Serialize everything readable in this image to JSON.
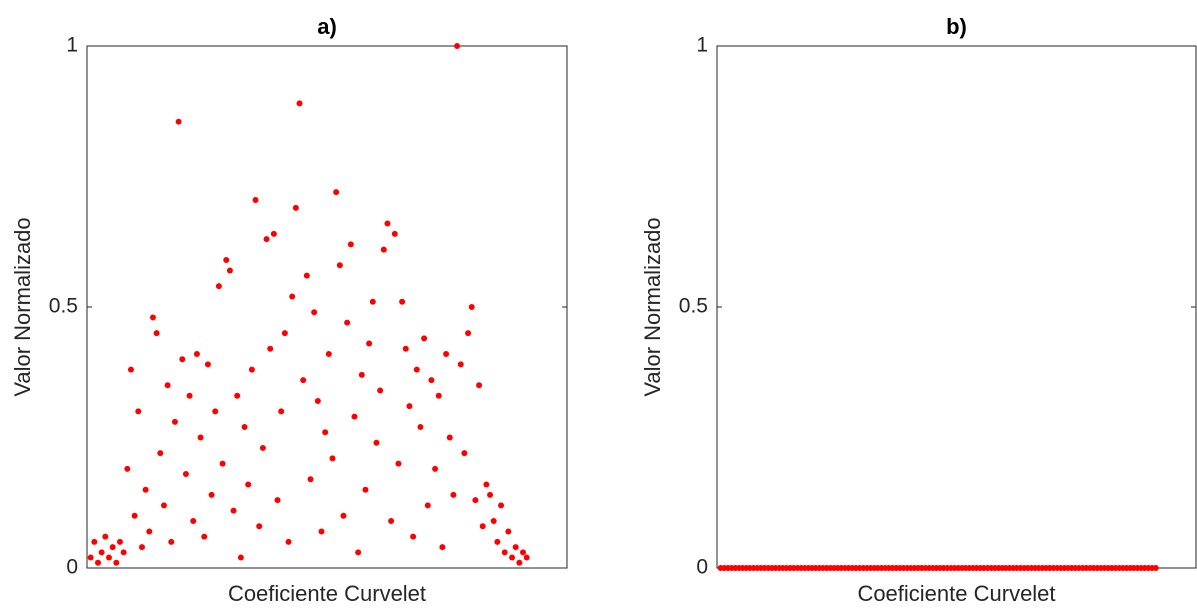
{
  "chart_data": [
    {
      "type": "scatter",
      "title": "a)",
      "x_label": "Coeficiente Curvelet",
      "y_label": "Valor Normalizado",
      "color": "#ff0000",
      "x": [
        1,
        2,
        3,
        4,
        5,
        6,
        7,
        8,
        9,
        10,
        11,
        12,
        13,
        14,
        15,
        16,
        17,
        18,
        19,
        20,
        21,
        22,
        23,
        24,
        25,
        26,
        27,
        28,
        29,
        30,
        31,
        32,
        33,
        34,
        35,
        36,
        37,
        38,
        39,
        40,
        41,
        42,
        43,
        44,
        45,
        46,
        47,
        48,
        49,
        50,
        51,
        52,
        53,
        54,
        55,
        56,
        57,
        58,
        59,
        60,
        61,
        62,
        63,
        64,
        65,
        66,
        67,
        68,
        69,
        70,
        71,
        72,
        73,
        74,
        75,
        76,
        77,
        78,
        79,
        80,
        81,
        82,
        83,
        84,
        85,
        86,
        87,
        88,
        89,
        90,
        91,
        92,
        93,
        94,
        95,
        96,
        97,
        98,
        99,
        100,
        101,
        102,
        103,
        104,
        105,
        106,
        107,
        108,
        109,
        110,
        111,
        112,
        113,
        114,
        115,
        116,
        117,
        118,
        119,
        120
      ],
      "values": [
        0.02,
        0.05,
        0.01,
        0.03,
        0.06,
        0.02,
        0.04,
        0.01,
        0.05,
        0.03,
        0.19,
        0.38,
        0.1,
        0.3,
        0.04,
        0.15,
        0.07,
        0.48,
        0.45,
        0.22,
        0.12,
        0.35,
        0.05,
        0.28,
        0.855,
        0.4,
        0.18,
        0.33,
        0.09,
        0.41,
        0.25,
        0.06,
        0.39,
        0.14,
        0.3,
        0.54,
        0.2,
        0.59,
        0.57,
        0.11,
        0.33,
        0.02,
        0.27,
        0.16,
        0.38,
        0.705,
        0.08,
        0.23,
        0.63,
        0.42,
        0.64,
        0.13,
        0.3,
        0.45,
        0.05,
        0.52,
        0.69,
        0.89,
        0.36,
        0.56,
        0.17,
        0.49,
        0.32,
        0.07,
        0.26,
        0.41,
        0.21,
        0.72,
        0.58,
        0.1,
        0.47,
        0.62,
        0.29,
        0.03,
        0.37,
        0.15,
        0.43,
        0.51,
        0.24,
        0.34,
        0.61,
        0.66,
        0.09,
        0.64,
        0.2,
        0.51,
        0.42,
        0.31,
        0.06,
        0.38,
        0.27,
        0.44,
        0.12,
        0.36,
        0.19,
        0.33,
        0.04,
        0.41,
        0.25,
        0.14,
        1.0,
        0.39,
        0.22,
        0.45,
        0.5,
        0.13,
        0.35,
        0.08,
        0.16,
        0.14,
        0.09,
        0.05,
        0.12,
        0.03,
        0.07,
        0.02,
        0.04,
        0.01,
        0.03,
        0.02
      ],
      "xlim": [
        0,
        131
      ],
      "ylim": [
        0,
        1
      ],
      "yticks": [
        0,
        0.5,
        1
      ]
    },
    {
      "type": "scatter",
      "title": "b)",
      "x_label": "Coeficiente Curvelet",
      "y_label": "Valor Normalizado",
      "color": "#ff0000",
      "x": [
        1,
        2,
        3,
        4,
        5,
        6,
        7,
        8,
        9,
        10,
        11,
        12,
        13,
        14,
        15,
        16,
        17,
        18,
        19,
        20,
        21,
        22,
        23,
        24,
        25,
        26,
        27,
        28,
        29,
        30,
        31,
        32,
        33,
        34,
        35,
        36,
        37,
        38,
        39,
        40,
        41,
        42,
        43,
        44,
        45,
        46,
        47,
        48,
        49,
        50,
        51,
        52,
        53,
        54,
        55,
        56,
        57,
        58,
        59,
        60,
        61,
        62,
        63,
        64,
        65,
        66,
        67,
        68,
        69,
        70,
        71,
        72,
        73,
        74,
        75,
        76,
        77,
        78,
        79,
        80,
        81,
        82,
        83,
        84,
        85,
        86,
        87,
        88,
        89,
        90,
        91,
        92,
        93,
        94,
        95,
        96,
        97,
        98,
        99,
        100,
        101,
        102,
        103,
        104,
        105,
        106,
        107,
        108,
        109,
        110,
        111,
        112,
        113,
        114,
        115,
        116,
        117,
        118,
        119,
        120
      ],
      "values": [
        0,
        0,
        0,
        0,
        0,
        0,
        0,
        0,
        0,
        0,
        0,
        0,
        0,
        0,
        0,
        0,
        0,
        0,
        0,
        0,
        0,
        0,
        0,
        0,
        0,
        0,
        0,
        0,
        0,
        0,
        0,
        0,
        0,
        0,
        0,
        0,
        0,
        0,
        0,
        0,
        0,
        0,
        0,
        0,
        0,
        0,
        0,
        0,
        0,
        0,
        0,
        0,
        0,
        0,
        0,
        0,
        0,
        0,
        0,
        0,
        0,
        0,
        0,
        0,
        0,
        0,
        0,
        0,
        0,
        0,
        0,
        0,
        0,
        0,
        0,
        0,
        0,
        0,
        0,
        0,
        0,
        0,
        0,
        0,
        0,
        0,
        0,
        0,
        0,
        0,
        0,
        0,
        0,
        0,
        0,
        0,
        0,
        0,
        0,
        0,
        0,
        0,
        0,
        0,
        0,
        0,
        0,
        0,
        0,
        0,
        0,
        0,
        0,
        0,
        0,
        0,
        0,
        0,
        0,
        0
      ],
      "xlim": [
        0,
        131
      ],
      "ylim": [
        0,
        1
      ],
      "yticks": [
        0,
        0.5,
        1
      ]
    }
  ]
}
